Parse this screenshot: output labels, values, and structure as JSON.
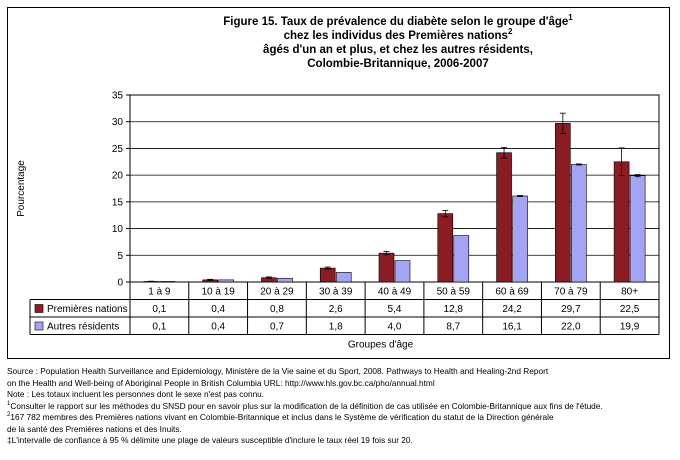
{
  "chart_data": {
    "type": "bar",
    "title_lines": [
      {
        "text": "Figure 15. Taux de prévalence du diabète selon le groupe d'âge",
        "sup": "1"
      },
      {
        "text": "chez les individus des Premières nations",
        "sup": "2"
      },
      {
        "text": "âgés d'un an et plus, et chez les autres résidents,",
        "sup": ""
      },
      {
        "text": "Colombie-Britannique, 2006-2007",
        "sup": ""
      }
    ],
    "ylabel": "Pourcentage",
    "xlabel": "Groupes d'âge",
    "ylim": [
      0,
      35
    ],
    "yticks": [
      "0",
      "5",
      "10",
      "15",
      "20",
      "25",
      "30",
      "35"
    ],
    "grid": "horizontal",
    "error_bars": true,
    "categories": [
      "1 à 9",
      "10 à 19",
      "20 à 29",
      "30 à 39",
      "40 à 49",
      "50 à 59",
      "60 à 69",
      "70 à 79",
      "80+"
    ],
    "series": [
      {
        "name": "Premières nations",
        "color": "#8b1c24",
        "values": [
          0.1,
          0.4,
          0.8,
          2.6,
          5.4,
          12.8,
          24.2,
          29.7,
          22.5
        ],
        "labels": [
          "0,1",
          "0,4",
          "0,8",
          "2,6",
          "5,4",
          "12,8",
          "24,2",
          "29,7",
          "22,5"
        ],
        "ci_low": [
          0.05,
          0.3,
          0.65,
          2.4,
          5.1,
          12.2,
          23.2,
          27.8,
          19.9
        ],
        "ci_high": [
          0.15,
          0.5,
          0.95,
          2.8,
          5.7,
          13.4,
          25.2,
          31.6,
          25.1
        ]
      },
      {
        "name": "Autres résidents",
        "color": "#a4a4f4",
        "values": [
          0.1,
          0.4,
          0.7,
          1.8,
          4.0,
          8.7,
          16.1,
          22.0,
          19.9
        ],
        "labels": [
          "0,1",
          "0,4",
          "0,7",
          "1,8",
          "4,0",
          "8,7",
          "16,1",
          "22,0",
          "19,9"
        ],
        "ci_low": [
          0.1,
          0.4,
          0.7,
          1.8,
          4.0,
          8.7,
          16.0,
          21.9,
          19.7
        ],
        "ci_high": [
          0.1,
          0.4,
          0.7,
          1.8,
          4.0,
          8.7,
          16.2,
          22.1,
          20.1
        ]
      }
    ]
  },
  "notes": {
    "source_1": "Source : Population Health Surveillance and Epidemiology, Ministère de la Vie saine et du Sport, 2008. Pathways to Health and Healing-2nd Report",
    "source_2": "on the Health and Well-being of Aboriginal People in British Columbia URL: http://www.hls.gov.bc.ca/pho/annual.html",
    "note": "Note : Les totaux incluent les personnes dont le sexe n'est pas connu.",
    "fn1_mark": "1",
    "fn1": "Consulter le rapport sur les méthodes du SNSD pour en savoir plus sur la modification de la définition de cas utilisée en Colombie-Britannique aux fins de l'étude.",
    "fn2_mark": "2",
    "fn2_1": "167 782 membres des Premières nations vivant en Colombie-Britannique et inclus dans le Système de vérification du statut de la Direction générale",
    "fn2_2": "de la santé des Premières nations et des Inuits.",
    "fn3": "‡L'intervalle de confiance à 95 % délimite une plage de valeurs susceptible d'inclure le taux réel 19 fois sur 20."
  }
}
